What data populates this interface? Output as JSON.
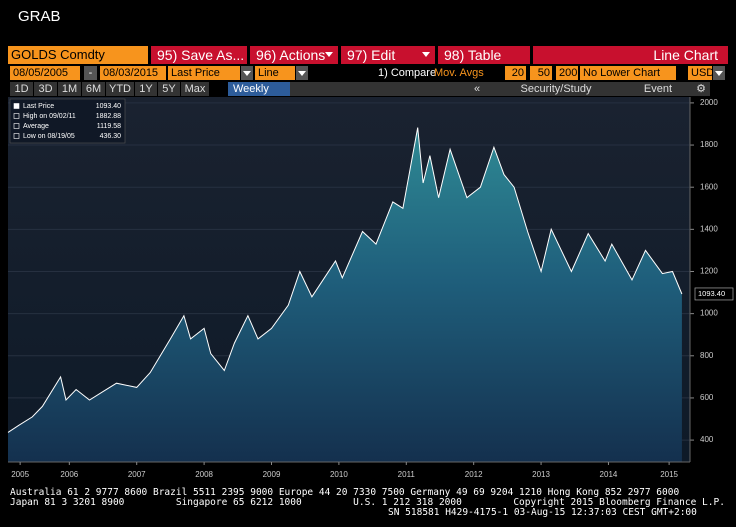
{
  "window_title": "GRAB",
  "toolbar": {
    "security": "GOLDS Comdty",
    "buttons": [
      "95) Save As...",
      "96) Actions",
      "97) Edit",
      "98) Table"
    ],
    "chart_type": "Line Chart"
  },
  "settings": {
    "start_date": "08/05/2005",
    "separator": "-",
    "end_date": "08/03/2015",
    "field": "Last Price",
    "style": "Line",
    "compare": "1) Compare",
    "mov_avgs": "Mov. Avgs",
    "periods": [
      "20",
      "50",
      "200"
    ],
    "lower_chart": "No Lower Chart",
    "currency": "USD"
  },
  "periods_bar": {
    "ranges": [
      "1D",
      "3D",
      "1M",
      "6M",
      "YTD",
      "1Y",
      "5Y",
      "Max"
    ],
    "frequency": "Weekly",
    "collapse": "«",
    "security_study": "Security/Study",
    "event": "Event"
  },
  "chart_data": {
    "type": "line",
    "legend_items": [
      {
        "label": "Last Price",
        "value": "1093.40"
      },
      {
        "label": "High on 09/02/11",
        "value": "1882.88"
      },
      {
        "label": "Average",
        "value": "1119.58"
      },
      {
        "label": "Low on 08/19/05",
        "value": "436.30"
      }
    ],
    "x": [
      2005.59,
      2005.75,
      2005.95,
      2006.1,
      2006.37,
      2006.45,
      2006.6,
      2006.8,
      2007.0,
      2007.2,
      2007.5,
      2007.7,
      2007.85,
      2008.0,
      2008.2,
      2008.3,
      2008.5,
      2008.6,
      2008.8,
      2008.95,
      2009.15,
      2009.3,
      2009.5,
      2009.75,
      2009.92,
      2010.1,
      2010.45,
      2010.55,
      2010.85,
      2011.05,
      2011.3,
      2011.45,
      2011.67,
      2011.75,
      2011.85,
      2011.98,
      2012.15,
      2012.4,
      2012.6,
      2012.8,
      2012.95,
      2013.1,
      2013.3,
      2013.5,
      2013.65,
      2013.95,
      2014.2,
      2014.45,
      2014.55,
      2014.85,
      2015.05,
      2015.3,
      2015.45,
      2015.59
    ],
    "series": [
      {
        "name": "Last Price",
        "color": "#ffffff",
        "values": [
          436.3,
          470,
          510,
          560,
          700,
          590,
          640,
          590,
          630,
          670,
          650,
          720,
          800,
          880,
          990,
          880,
          930,
          810,
          730,
          860,
          990,
          880,
          930,
          1040,
          1200,
          1080,
          1250,
          1170,
          1390,
          1330,
          1530,
          1500,
          1882.88,
          1620,
          1750,
          1550,
          1780,
          1550,
          1600,
          1790,
          1660,
          1600,
          1390,
          1200,
          1400,
          1200,
          1380,
          1250,
          1330,
          1160,
          1300,
          1190,
          1200,
          1093.4
        ]
      }
    ],
    "xlim": [
      2005.59,
      2015.71
    ],
    "xticks": [
      {
        "value": 2005.77,
        "label": "2005"
      },
      {
        "value": 2006.5,
        "label": "2006"
      },
      {
        "value": 2007.5,
        "label": "2007"
      },
      {
        "value": 2008.5,
        "label": "2008"
      },
      {
        "value": 2009.5,
        "label": "2009"
      },
      {
        "value": 2010.5,
        "label": "2010"
      },
      {
        "value": 2011.5,
        "label": "2011"
      },
      {
        "value": 2012.5,
        "label": "2012"
      },
      {
        "value": 2013.5,
        "label": "2013"
      },
      {
        "value": 2014.5,
        "label": "2014"
      },
      {
        "value": 2015.4,
        "label": "2015"
      }
    ],
    "ylim": [
      296,
      2028
    ],
    "yticks": [
      400,
      600,
      800,
      1000,
      1200,
      1400,
      1600,
      1800,
      2000
    ],
    "grid": true
  },
  "footer": [
    "Australia 61 2 9777 8600 Brazil 5511 2395 9000 Europe 44 20 7330 7500 Germany 49 69 9204 1210 Hong Kong 852 2977 6000",
    "Japan 81 3 3201 8900         Singapore 65 6212 1000         U.S. 1 212 318 2000         Copyright 2015 Bloomberg Finance L.P.",
    "SN 518581 H429-4175-1 03-Aug-15 12:37:03 CEST GMT+2:00"
  ]
}
